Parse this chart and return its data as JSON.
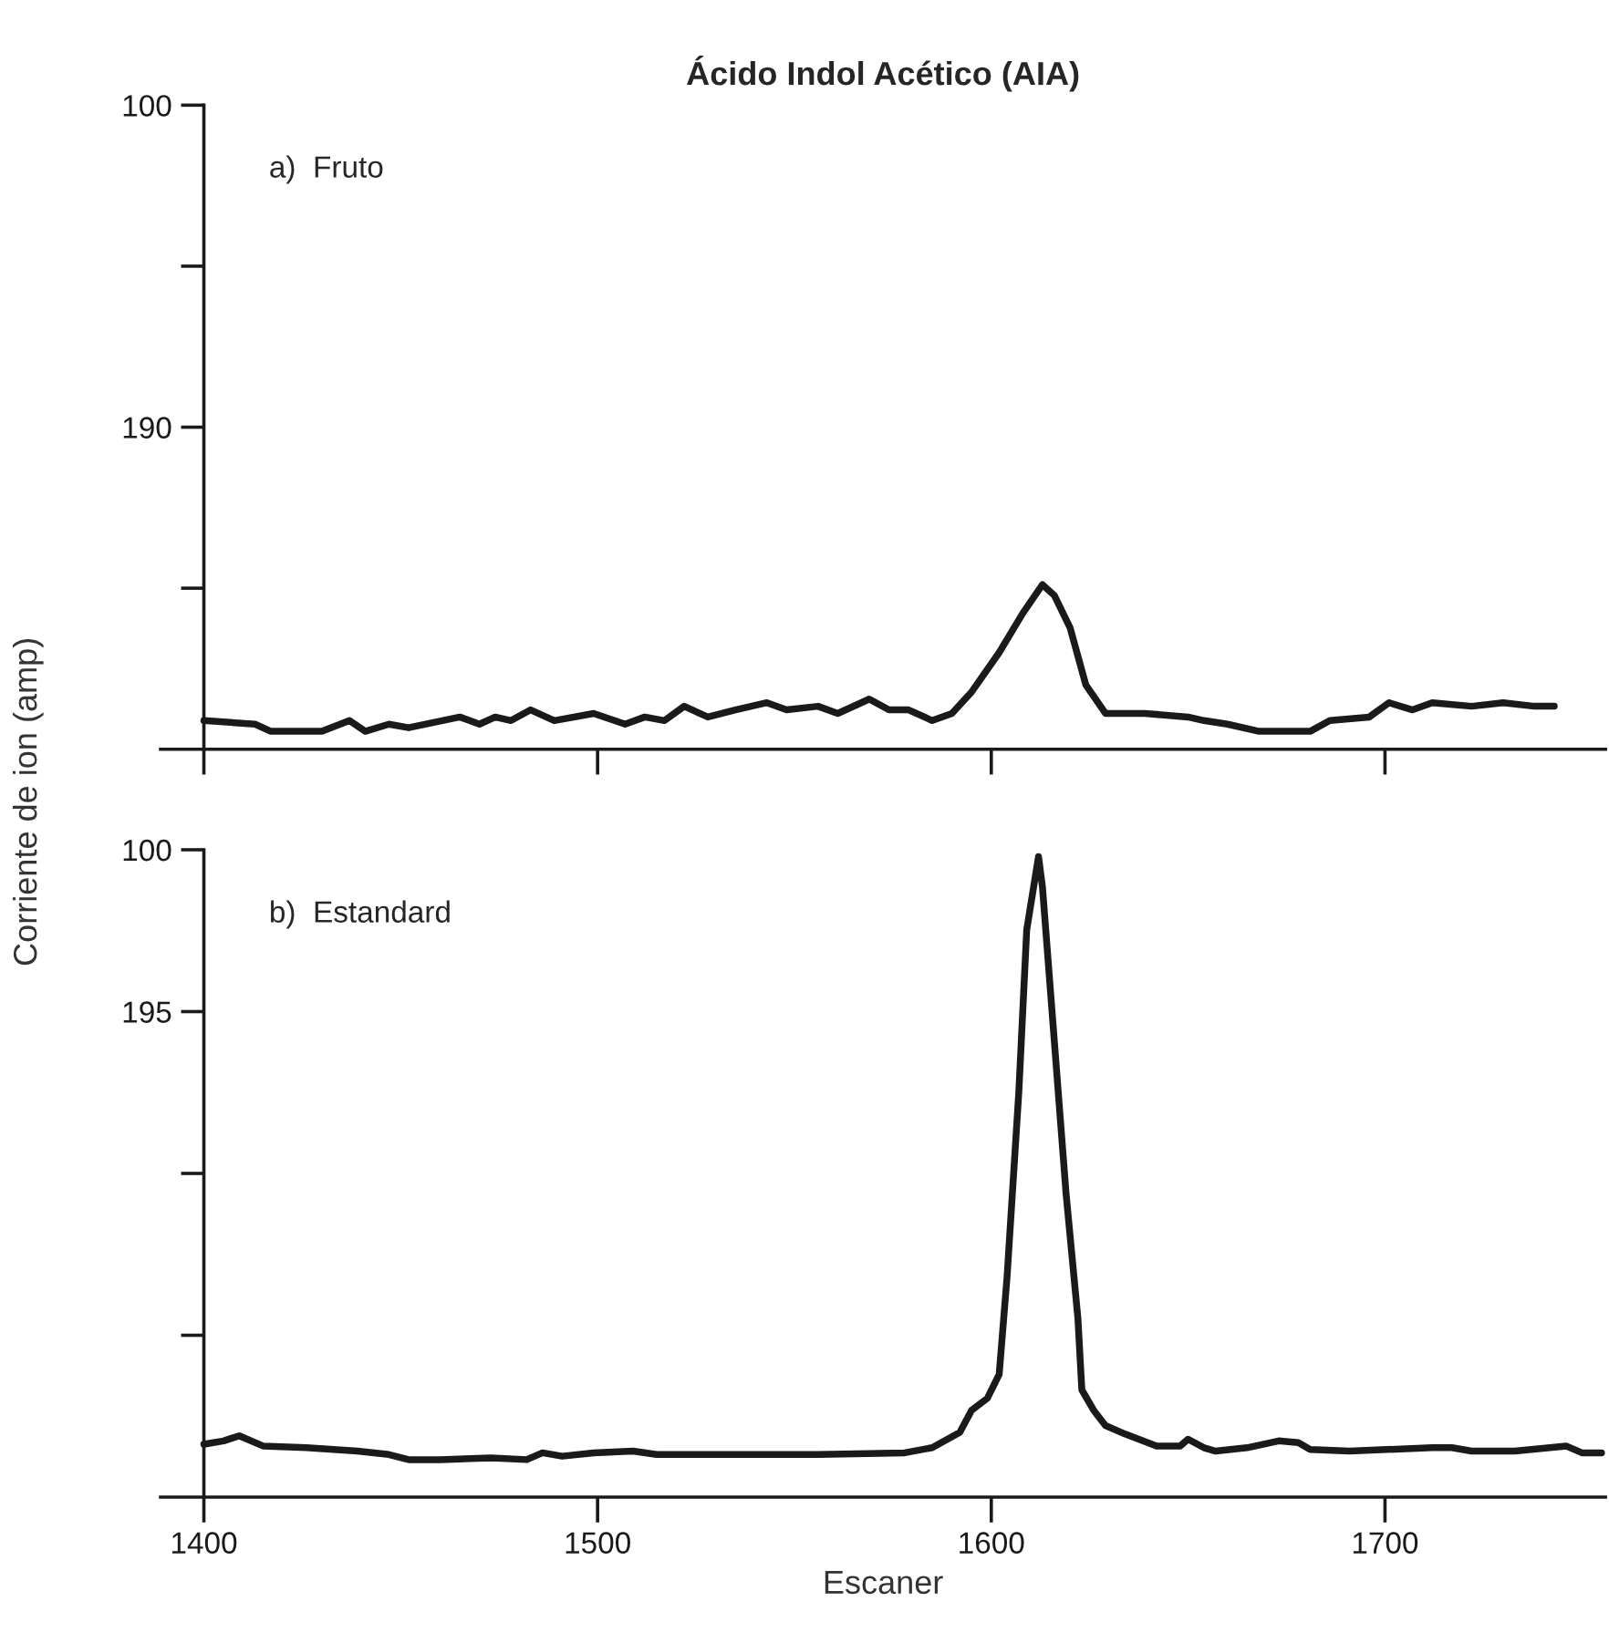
{
  "chart_data": [
    {
      "type": "line",
      "title": "Ácido Indol Acético (AIA)",
      "annotations": [
        "a)  Fruto"
      ],
      "xlim": [
        1389,
        1756
      ],
      "xticks": [
        1400,
        1500,
        1600,
        1700
      ],
      "ylim": [
        280,
        100
      ],
      "yticks": [
        100,
        {
          "value": 145,
          "label": null
        },
        190,
        {
          "value": 235,
          "label": null
        }
      ],
      "tick_labels": "y",
      "grid": false,
      "legend": false,
      "line_style": "solid",
      "marker": "none",
      "series": [
        {
          "color": "#1a1a1a",
          "x": [
            1400,
            1413,
            1417,
            1430,
            1437,
            1441,
            1447,
            1452,
            1465,
            1470,
            1474,
            1478,
            1483,
            1489,
            1499,
            1507,
            1512,
            1517,
            1522,
            1528,
            1535,
            1543,
            1548,
            1556,
            1561,
            1569,
            1574,
            1579,
            1585,
            1590,
            1595,
            1602,
            1608,
            1613,
            1616,
            1620,
            1624,
            1629,
            1639,
            1650,
            1654,
            1660,
            1668,
            1673,
            1681,
            1686,
            1696,
            1701,
            1707,
            1712,
            1722,
            1730,
            1738,
            1743
          ],
          "values": [
            272,
            273,
            275,
            275,
            272,
            275,
            273,
            274,
            271,
            273,
            271,
            272,
            269,
            272,
            270,
            273,
            271,
            272,
            268,
            271,
            269,
            267,
            269,
            268,
            270,
            266,
            269,
            269,
            272,
            270,
            264,
            253,
            242,
            234,
            237,
            246,
            262,
            270,
            270,
            271,
            272,
            273,
            275,
            275,
            275,
            272,
            271,
            267,
            269,
            267,
            268,
            267,
            268,
            268
          ]
        }
      ]
    },
    {
      "type": "line",
      "xlabel": "Escaner",
      "ylabel": "Corriente de ion (amp)",
      "annotations": [
        "b)  Estandard"
      ],
      "xlim": [
        1389,
        1756
      ],
      "xticks": [
        1400,
        1500,
        1600,
        1700
      ],
      "ylim": [
        480,
        100
      ],
      "yticks": [
        100,
        195,
        {
          "value": 290,
          "label": null
        },
        {
          "value": 385,
          "label": null
        }
      ],
      "grid": false,
      "legend": false,
      "line_style": "solid",
      "marker": "none",
      "series": [
        {
          "color": "#1a1a1a",
          "x": [
            1400,
            1405,
            1409,
            1415,
            1426,
            1439,
            1447,
            1452,
            1460,
            1473,
            1482,
            1486,
            1491,
            1499,
            1509,
            1515,
            1530,
            1556,
            1578,
            1585,
            1592,
            1595,
            1599,
            1602,
            1604,
            1607,
            1609,
            1612,
            1613,
            1616,
            1619,
            1622,
            1623,
            1626,
            1629,
            1634,
            1642,
            1648,
            1650,
            1654,
            1657,
            1665,
            1673,
            1678,
            1681,
            1691,
            1712,
            1717,
            1722,
            1733,
            1746,
            1750,
            1755
          ],
          "values": [
            449,
            447,
            444,
            450,
            451,
            453,
            455,
            458,
            458,
            457,
            458,
            454,
            456,
            454,
            453,
            455,
            455,
            455,
            454,
            451,
            442,
            429,
            422,
            408,
            351,
            242,
            147,
            104,
            122,
            212,
            302,
            375,
            417,
            429,
            438,
            443,
            450,
            450,
            446,
            451,
            453,
            451,
            447,
            448,
            452,
            453,
            451,
            451,
            453,
            453,
            450,
            454,
            454
          ]
        }
      ]
    }
  ]
}
